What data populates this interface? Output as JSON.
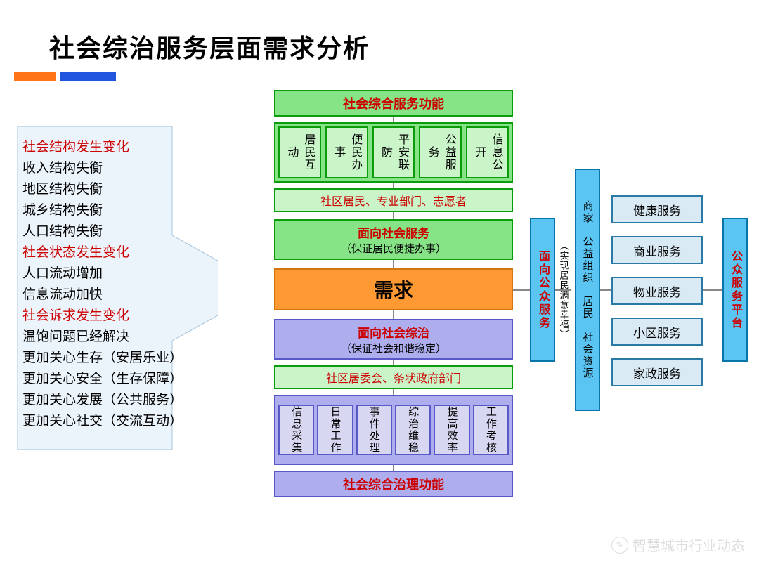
{
  "title": "社会综治服务层面需求分析",
  "bars": {
    "orange": "#ff7518",
    "blue": "#2255dd"
  },
  "left_items": [
    {
      "text": "社会结构发生变化",
      "cls": "red"
    },
    {
      "text": "收入结构失衡",
      "cls": ""
    },
    {
      "text": "地区结构失衡",
      "cls": ""
    },
    {
      "text": "城乡结构失衡",
      "cls": ""
    },
    {
      "text": "人口结构失衡",
      "cls": ""
    },
    {
      "text": "社会状态发生变化",
      "cls": "red"
    },
    {
      "text": "人口流动增加",
      "cls": ""
    },
    {
      "text": "信息流动加快",
      "cls": ""
    },
    {
      "text": "社会诉求发生变化",
      "cls": "red"
    },
    {
      "text": "温饱问题已经解决",
      "cls": ""
    },
    {
      "text": "更加关心生存（安居乐业）",
      "cls": ""
    },
    {
      "text": "更加关心安全（生存保障）",
      "cls": ""
    },
    {
      "text": "更加关心发展（公共服务）",
      "cls": ""
    },
    {
      "text": "更加关心社交（交流互动）",
      "cls": ""
    }
  ],
  "center": {
    "top_title": "社会综合服务功能",
    "top_items": [
      "居民互动",
      "便民办事",
      "平安联防",
      "公益服务",
      "信息公开"
    ],
    "who_top": "社区居民、专业部门、志愿者",
    "mid_top": {
      "t1": "面向社会服务",
      "t2": "（保证居民便捷办事）"
    },
    "demand": "需求",
    "mid_bottom": {
      "t1": "面向社会综治",
      "t2": "（保证社会和谐稳定）"
    },
    "who_bottom": "社区居委会、条状政府部门",
    "bottom_items": [
      "信息采集",
      "日常工作",
      "事件处理",
      "综治维稳",
      "提高效率",
      "工作考核"
    ],
    "bottom_title": "社会综合治理功能"
  },
  "right": {
    "col1": {
      "t1": "面向公众服务",
      "t2": "（实现居民满意幸福）"
    },
    "col2": "商家　公益组织　居民　社会资源",
    "services": [
      "健康服务",
      "商业服务",
      "物业服务",
      "小区服务",
      "家政服务"
    ],
    "platform": "公众服务平台"
  },
  "watermark": "智慧城市行业动态",
  "colors": {
    "green_bg": "#86e386",
    "green_bd": "#0a9c0a",
    "lgreen_bg": "#c9f5c9",
    "blue_bg": "#5ac5f2",
    "blue_bd": "#0874a8",
    "lblue_bg": "#d9eaf5",
    "lblue_bd": "#2a7aa8",
    "orange_bg": "#ff9933",
    "orange_bd": "#d37510",
    "purple_bg": "#aeaeee",
    "purple_bd": "#5858c8",
    "red_text": "#cc0000"
  }
}
